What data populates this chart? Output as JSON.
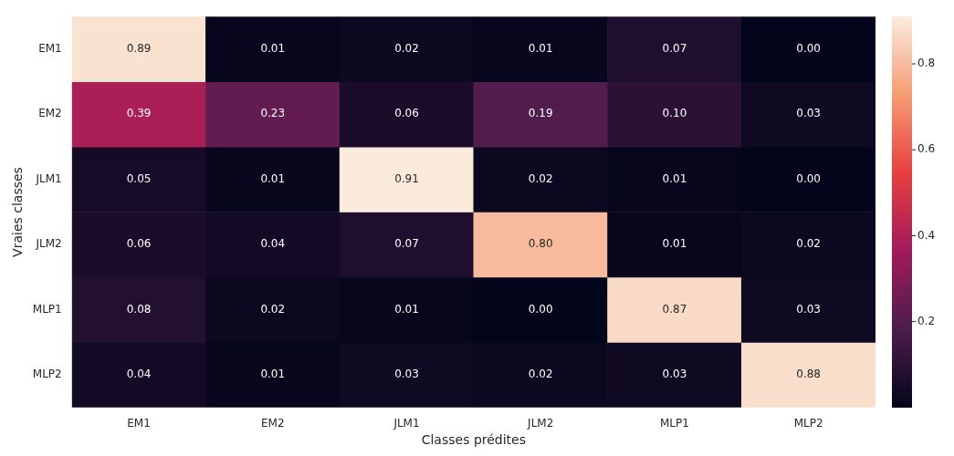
{
  "chart_data": {
    "type": "heatmap",
    "xlabel": "Classes prédites",
    "ylabel": "Vraies classes",
    "categories": [
      "EM1",
      "EM2",
      "JLM1",
      "JLM2",
      "MLP1",
      "MLP2"
    ],
    "y_categories": [
      "EM1",
      "EM2",
      "JLM1",
      "JLM2",
      "MLP1",
      "MLP2"
    ],
    "cells": [
      [
        0.89,
        0.01,
        0.02,
        0.01,
        0.07,
        0.0
      ],
      [
        0.39,
        0.23,
        0.06,
        0.19,
        0.1,
        0.03
      ],
      [
        0.05,
        0.01,
        0.91,
        0.02,
        0.01,
        0.0
      ],
      [
        0.06,
        0.04,
        0.07,
        0.8,
        0.01,
        0.02
      ],
      [
        0.08,
        0.02,
        0.01,
        0.0,
        0.87,
        0.03
      ],
      [
        0.04,
        0.01,
        0.03,
        0.02,
        0.03,
        0.88
      ]
    ],
    "cell_labels": [
      [
        "0.89",
        "0.01",
        "0.02",
        "0.01",
        "0.07",
        "0.00"
      ],
      [
        "0.39",
        "0.23",
        "0.06",
        "0.19",
        "0.10",
        "0.03"
      ],
      [
        "0.05",
        "0.01",
        "0.91",
        "0.02",
        "0.01",
        "0.00"
      ],
      [
        "0.06",
        "0.04",
        "0.07",
        "0.80",
        "0.01",
        "0.02"
      ],
      [
        "0.08",
        "0.02",
        "0.01",
        "0.00",
        "0.87",
        "0.03"
      ],
      [
        "0.04",
        "0.01",
        "0.03",
        "0.02",
        "0.03",
        "0.88"
      ]
    ],
    "clim": [
      0,
      0.91
    ],
    "cticks": [
      0.2,
      0.4,
      0.6,
      0.8
    ],
    "data_labels": true
  }
}
